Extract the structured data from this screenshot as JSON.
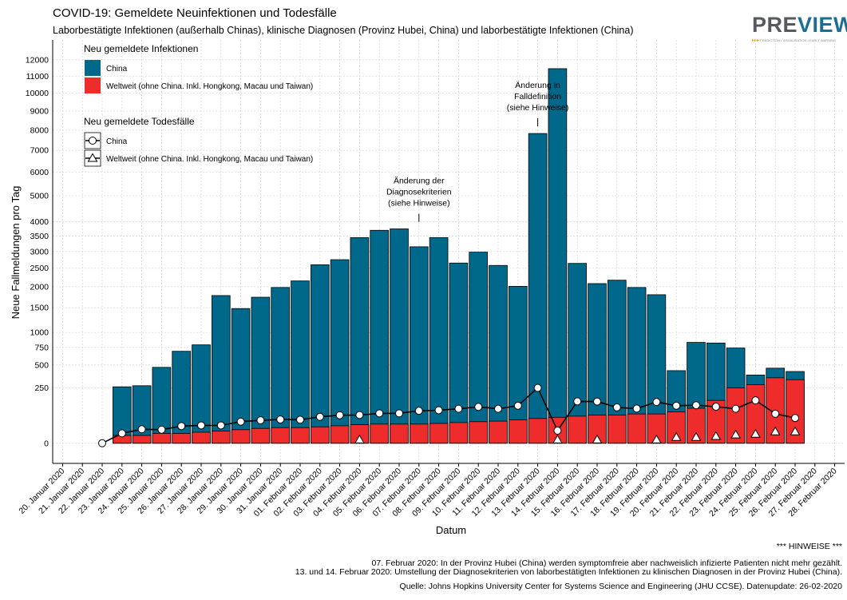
{
  "title": "COVID-19: Gemeldete Neuinfektionen und Todesfälle",
  "subtitle": "Laborbestätigte Infektionen (außerhalb Chinas), klinische Diagnosen (Provinz Hubei, China) und laborbestätigte Infektionen (China)",
  "logo": {
    "text_pre": "PRE",
    "text_view": "VIEW",
    "tagline": "PREDICTION • VISUALISATION • EARLY WARNING"
  },
  "notes": {
    "header": "*** HINWEISE ***",
    "line1": "07. Februar 2020: In der Provinz Hubei (China) werden symptomfreie aber nachweislich infizierte Patienten nicht mehr gezählt.",
    "line2": "13. und 14. Februar 2020: Umstellung der Diagnosekriterien von laborbestätigten Infektionen zu klinischen Diagnosen in der Provinz Hubei (China)."
  },
  "source": "Quelle: Johns Hopkins University Center for Systems Science and Engineering (JHU CCSE). Datenupdate: 26-02-2020",
  "colors": {
    "china": "#00688b",
    "world": "#ee2c2c",
    "grid": "#d9d9d9"
  },
  "chart_data": {
    "type": "bar",
    "title": "COVID-19: Gemeldete Neuinfektionen und Todesfälle",
    "xlabel": "Datum",
    "ylabel": "Neue Fallmeldungen pro Tag",
    "y_scale": "square-root",
    "ylim": [
      -300,
      12000
    ],
    "y_ticks": [
      0,
      250,
      500,
      750,
      1000,
      1500,
      2000,
      2500,
      3000,
      3500,
      4000,
      5000,
      6000,
      7000,
      8000,
      9000,
      10000,
      11000,
      12000
    ],
    "grid": true,
    "legend_position": "top-left",
    "categories": [
      "20. Januar 2020",
      "21. Januar 2020",
      "22. Januar 2020",
      "23. Januar 2020",
      "24. Januar 2020",
      "25. Januar 2020",
      "26. Januar 2020",
      "27. Januar 2020",
      "28. Januar 2020",
      "29. Januar 2020",
      "30. Januar 2020",
      "31. Januar 2020",
      "01. Februar 2020",
      "02. Februar 2020",
      "03. Februar 2020",
      "04. Februar 2020",
      "05. Februar 2020",
      "06. Februar 2020",
      "07. Februar 2020",
      "08. Februar 2020",
      "09. Februar 2020",
      "10. Februar 2020",
      "11. Februar 2020",
      "12. Februar 2020",
      "13. Februar 2020",
      "14. Februar 2020",
      "15. Februar 2020",
      "16. Februar 2020",
      "17. Februar 2020",
      "18. Februar 2020",
      "19. Februar 2020",
      "20. Februar 2020",
      "21. Februar 2020",
      "22. Februar 2020",
      "23. Februar 2020",
      "24. Februar 2020",
      "25. Februar 2020",
      "26. Februar 2020",
      "27. Februar 2020",
      "28. Februar 2020"
    ],
    "series": [
      {
        "name": "China",
        "kind": "infections",
        "values": [
          null,
          null,
          null,
          260,
          270,
          470,
          690,
          790,
          1780,
          1480,
          1740,
          1980,
          2150,
          2600,
          2750,
          3450,
          3700,
          3750,
          3150,
          3450,
          2650,
          2980,
          2580,
          2010,
          7830,
          11450,
          2640,
          2080,
          2170,
          1980,
          1800,
          430,
          830,
          820,
          740,
          380,
          460,
          420,
          null,
          null
        ]
      },
      {
        "name": "Weltweit (ohne China. Inkl. Hongkong, Macau und Taiwan)",
        "kind": "infections",
        "values": [
          null,
          null,
          null,
          5,
          5,
          8,
          8,
          10,
          12,
          15,
          18,
          20,
          20,
          22,
          25,
          28,
          30,
          30,
          30,
          32,
          35,
          38,
          40,
          45,
          50,
          55,
          60,
          65,
          65,
          70,
          70,
          80,
          100,
          150,
          250,
          280,
          350,
          330,
          null,
          null
        ]
      },
      {
        "name": "China",
        "kind": "deaths",
        "values": [
          null,
          null,
          0,
          8,
          16,
          15,
          24,
          26,
          26,
          38,
          43,
          46,
          45,
          57,
          64,
          65,
          73,
          73,
          86,
          89,
          97,
          108,
          97,
          115,
          250,
          13,
          143,
          142,
          105,
          98,
          139,
          115,
          118,
          109,
          97,
          150,
          71,
          52,
          null,
          null
        ]
      },
      {
        "name": "Weltweit (ohne China. Inkl. Hongkong, Macau und Taiwan)",
        "kind": "deaths",
        "values": [
          null,
          null,
          null,
          null,
          null,
          null,
          null,
          null,
          null,
          null,
          null,
          null,
          null,
          null,
          null,
          1,
          null,
          null,
          null,
          null,
          null,
          null,
          null,
          null,
          null,
          1,
          null,
          1,
          null,
          null,
          1,
          3,
          3,
          4,
          6,
          7,
          11,
          11,
          null,
          null
        ]
      }
    ],
    "legend": {
      "infections_title": "Neu gemeldete Infektionen",
      "deaths_title": "Neu gemeldete Todesfälle",
      "china_label": "China",
      "world_label": "Weltweit (ohne China. Inkl. Hongkong, Macau und Taiwan)"
    },
    "annotations": [
      {
        "category": "07. Februar 2020",
        "value": 4000,
        "lines": [
          "Änderung der",
          "Diagnosekriterien",
          "(siehe Hinweise)"
        ]
      },
      {
        "category": "13. Februar 2020",
        "value": 8200,
        "lines": [
          "Änderung in",
          "Falldefinition",
          "(siehe Hinweise)"
        ]
      }
    ]
  }
}
